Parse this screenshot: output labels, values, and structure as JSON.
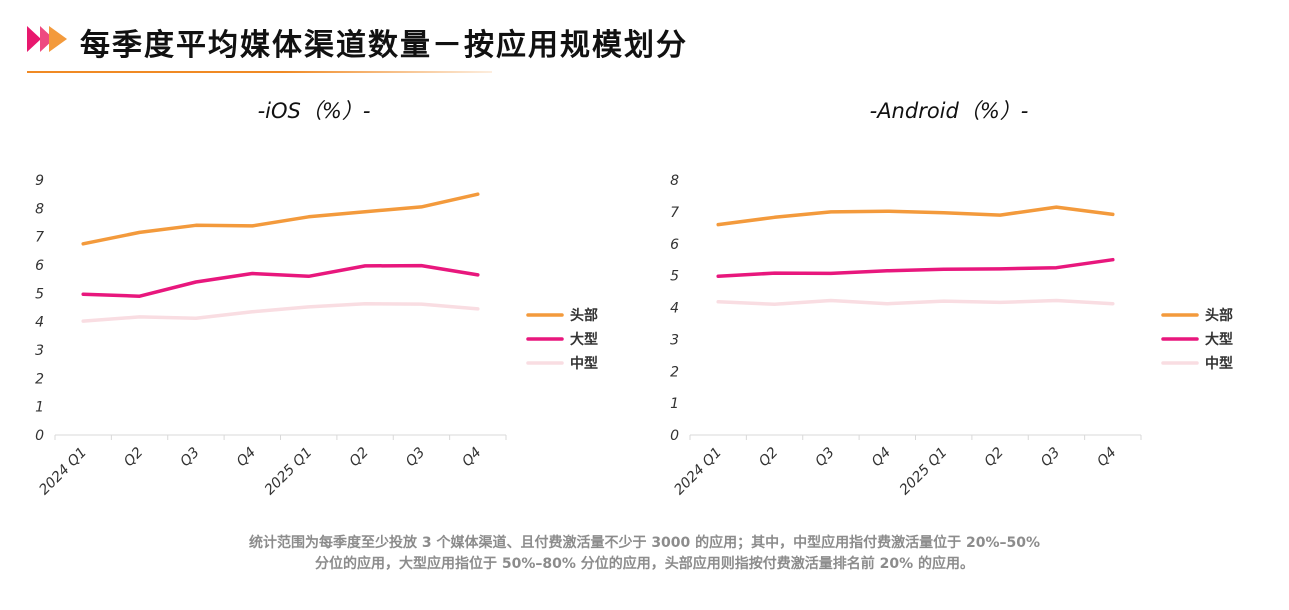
{
  "page": {
    "title": "每季度平均媒体渠道数量－按应用规模划分",
    "icon": "double-chevron-icon",
    "accent_colors": {
      "pink": "#e8186e",
      "orange": "#f39a3c",
      "rule": "#f08a24"
    },
    "footnote": [
      "统计范围为每季度至少投放 3 个媒体渠道、且付费激活量不少于 3000 的应用；其中，中型应用指付费激活量位于 20%–50%",
      "分位的应用，大型应用指位于 50%–80% 分位的应用，头部应用则指按付费激活量排名前 20% 的应用。"
    ]
  },
  "chart_data": [
    {
      "id": "ios",
      "type": "line",
      "title": "-iOS（%）-",
      "categories": [
        "2024 Q1",
        "Q2",
        "Q3",
        "Q4",
        "2025 Q1",
        "Q2",
        "Q3",
        "Q4"
      ],
      "ylim": [
        0,
        9
      ],
      "yticks": [
        "0",
        "1",
        "2",
        "3",
        "4",
        "5",
        "6",
        "7",
        "8",
        "9"
      ],
      "grid": false,
      "legend_position": "right",
      "series": [
        {
          "name": "头部",
          "color": "#f39a3c",
          "values": [
            6.75,
            7.15,
            7.4,
            7.38,
            7.7,
            7.88,
            8.05,
            8.5
          ]
        },
        {
          "name": "大型",
          "color": "#e8177d",
          "values": [
            4.97,
            4.9,
            5.4,
            5.7,
            5.6,
            5.97,
            5.98,
            5.65
          ]
        },
        {
          "name": "中型",
          "color": "#f9dde2",
          "values": [
            4.02,
            4.17,
            4.12,
            4.35,
            4.52,
            4.63,
            4.62,
            4.45
          ]
        }
      ]
    },
    {
      "id": "android",
      "type": "line",
      "title": "-Android（%）-",
      "categories": [
        "2024 Q1",
        "Q2",
        "Q3",
        "Q4",
        "2025 Q1",
        "Q2",
        "Q3",
        "Q4"
      ],
      "ylim": [
        0,
        8
      ],
      "yticks": [
        "0",
        "1",
        "2",
        "3",
        "4",
        "5",
        "6",
        "7",
        "8"
      ],
      "grid": false,
      "legend_position": "right",
      "series": [
        {
          "name": "头部",
          "color": "#f39a3c",
          "values": [
            6.6,
            6.83,
            7.0,
            7.02,
            6.97,
            6.9,
            7.15,
            6.92
          ]
        },
        {
          "name": "大型",
          "color": "#e8177d",
          "values": [
            4.98,
            5.08,
            5.07,
            5.15,
            5.2,
            5.21,
            5.25,
            5.5
          ]
        },
        {
          "name": "中型",
          "color": "#f9dde2",
          "values": [
            4.18,
            4.1,
            4.22,
            4.12,
            4.2,
            4.16,
            4.22,
            4.12
          ]
        }
      ]
    }
  ]
}
